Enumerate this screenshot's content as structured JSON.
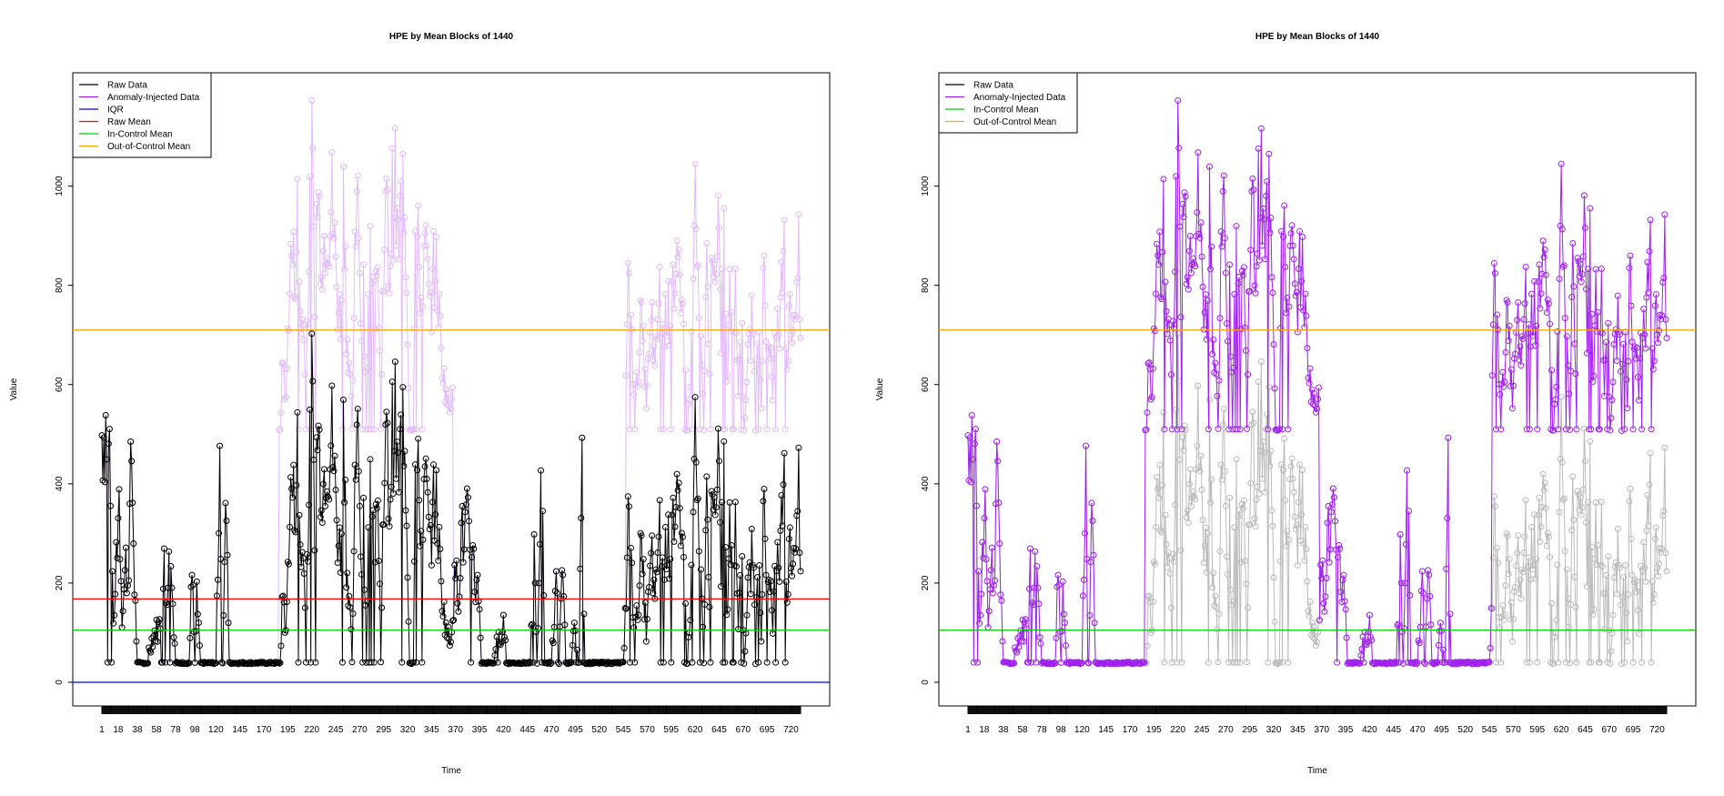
{
  "chart_data": [
    {
      "type": "line",
      "title": "HPE by Mean Blocks of 1440",
      "xlabel": "Time",
      "ylabel": "Value",
      "xlim": [
        1,
        730
      ],
      "ylim": [
        0,
        1100
      ],
      "grid": false,
      "legend_position": "top-left",
      "x_ticks": [
        1,
        18,
        38,
        58,
        78,
        98,
        120,
        145,
        170,
        195,
        220,
        245,
        270,
        295,
        320,
        345,
        370,
        395,
        420,
        445,
        470,
        495,
        520,
        545,
        570,
        595,
        620,
        645,
        670,
        695,
        720
      ],
      "y_ticks": [
        0,
        200,
        400,
        600,
        800,
        1000
      ],
      "legend": [
        {
          "name": "Raw Data",
          "color": "#000000"
        },
        {
          "name": "Anomaly-Injected Data",
          "color": "#a020f0"
        },
        {
          "name": "IQR",
          "color": "#0000ff"
        },
        {
          "name": "Raw Mean",
          "color": "#ff0000"
        },
        {
          "name": "In-Control Mean",
          "color": "#00cc00"
        },
        {
          "name": "Out-of-Control Mean",
          "color": "#ffa500"
        }
      ],
      "hlines": [
        {
          "name": "IQR",
          "value": 0,
          "color": "#0000ff"
        },
        {
          "name": "Raw Mean",
          "value": 168,
          "color": "#ff0000"
        },
        {
          "name": "In-Control Mean",
          "value": 105,
          "color": "#00cc00"
        },
        {
          "name": "Out-of-Control Mean",
          "value": 710,
          "color": "#ffa500"
        }
      ],
      "raw_style": {
        "color": "#000000",
        "opacity": 1
      },
      "anomaly_style": {
        "color": "#a020f0",
        "opacity": 0.3
      }
    },
    {
      "type": "line",
      "title": "HPE by Mean Blocks of 1440",
      "xlabel": "Time",
      "ylabel": "Value",
      "xlim": [
        1,
        730
      ],
      "ylim": [
        0,
        1100
      ],
      "grid": false,
      "legend_position": "top-left",
      "x_ticks": [
        1,
        18,
        38,
        58,
        78,
        98,
        120,
        145,
        170,
        195,
        220,
        245,
        270,
        295,
        320,
        345,
        370,
        395,
        420,
        445,
        470,
        495,
        520,
        545,
        570,
        595,
        620,
        645,
        670,
        695,
        720
      ],
      "y_ticks": [
        0,
        200,
        400,
        600,
        800,
        1000
      ],
      "legend": [
        {
          "name": "Raw Data",
          "color": "#000000"
        },
        {
          "name": "Anomaly-Injected Data",
          "color": "#a020f0"
        },
        {
          "name": "In-Control Mean",
          "color": "#00cc00"
        },
        {
          "name": "Out-of-Control Mean",
          "color": "#ffa500"
        }
      ],
      "hlines": [
        {
          "name": "In-Control Mean",
          "value": 105,
          "color": "#00cc00"
        },
        {
          "name": "Out-of-Control Mean",
          "value": 710,
          "color": "#ffa500"
        }
      ],
      "raw_style": {
        "color": "#555555",
        "opacity": 0.4
      },
      "anomaly_style": {
        "color": "#a020f0",
        "opacity": 1
      }
    }
  ],
  "series_data": {
    "name": "Raw Data",
    "anchors": [
      [
        1,
        500
      ],
      [
        5,
        515
      ],
      [
        9,
        470
      ],
      [
        11,
        220
      ],
      [
        14,
        110
      ],
      [
        16,
        260
      ],
      [
        19,
        380
      ],
      [
        22,
        140
      ],
      [
        26,
        240
      ],
      [
        28,
        200
      ],
      [
        32,
        460
      ],
      [
        35,
        200
      ],
      [
        38,
        40
      ],
      [
        42,
        40
      ],
      [
        47,
        40
      ],
      [
        52,
        80
      ],
      [
        56,
        100
      ],
      [
        60,
        110
      ],
      [
        64,
        140
      ],
      [
        66,
        230
      ],
      [
        68,
        180
      ],
      [
        70,
        220
      ],
      [
        72,
        240
      ],
      [
        74,
        200
      ],
      [
        76,
        120
      ],
      [
        78,
        40
      ],
      [
        84,
        40
      ],
      [
        88,
        40
      ],
      [
        92,
        30
      ],
      [
        95,
        225
      ],
      [
        98,
        40
      ],
      [
        100,
        170
      ],
      [
        104,
        40
      ],
      [
        110,
        40
      ],
      [
        115,
        35
      ],
      [
        120,
        30
      ],
      [
        124,
        470
      ],
      [
        127,
        40
      ],
      [
        130,
        400
      ],
      [
        134,
        40
      ],
      [
        138,
        40
      ],
      [
        143,
        40
      ],
      [
        150,
        40
      ],
      [
        160,
        40
      ],
      [
        170,
        40
      ],
      [
        178,
        40
      ],
      [
        183,
        60
      ],
      [
        187,
        40
      ],
      [
        190,
        190
      ],
      [
        193,
        90
      ],
      [
        196,
        300
      ],
      [
        199,
        400
      ],
      [
        202,
        350
      ],
      [
        205,
        470
      ],
      [
        208,
        280
      ],
      [
        211,
        240
      ],
      [
        214,
        180
      ],
      [
        217,
        370
      ],
      [
        220,
        600
      ],
      [
        223,
        350
      ],
      [
        226,
        520
      ],
      [
        229,
        440
      ],
      [
        232,
        400
      ],
      [
        235,
        470
      ],
      [
        238,
        460
      ],
      [
        241,
        500
      ],
      [
        244,
        400
      ],
      [
        247,
        300
      ],
      [
        250,
        260
      ],
      [
        253,
        600
      ],
      [
        256,
        250
      ],
      [
        259,
        180
      ],
      [
        262,
        40
      ],
      [
        265,
        400
      ],
      [
        268,
        480
      ],
      [
        271,
        260
      ],
      [
        274,
        300
      ],
      [
        277,
        40
      ],
      [
        280,
        380
      ],
      [
        283,
        440
      ],
      [
        286,
        280
      ],
      [
        289,
        460
      ],
      [
        292,
        40
      ],
      [
        295,
        420
      ],
      [
        298,
        480
      ],
      [
        301,
        350
      ],
      [
        304,
        500
      ],
      [
        307,
        520
      ],
      [
        310,
        400
      ],
      [
        313,
        480
      ],
      [
        316,
        540
      ],
      [
        319,
        360
      ],
      [
        322,
        40
      ],
      [
        325,
        40
      ],
      [
        328,
        420
      ],
      [
        331,
        400
      ],
      [
        334,
        300
      ],
      [
        337,
        380
      ],
      [
        340,
        380
      ],
      [
        343,
        260
      ],
      [
        346,
        340
      ],
      [
        349,
        380
      ],
      [
        352,
        300
      ],
      [
        355,
        200
      ],
      [
        358,
        140
      ],
      [
        361,
        100
      ],
      [
        364,
        80
      ],
      [
        367,
        140
      ],
      [
        370,
        220
      ],
      [
        373,
        180
      ],
      [
        376,
        300
      ],
      [
        379,
        280
      ],
      [
        382,
        350
      ],
      [
        385,
        220
      ],
      [
        388,
        300
      ],
      [
        391,
        180
      ],
      [
        394,
        200
      ],
      [
        397,
        40
      ],
      [
        402,
        40
      ],
      [
        406,
        40
      ],
      [
        410,
        60
      ],
      [
        414,
        80
      ],
      [
        417,
        100
      ],
      [
        420,
        120
      ],
      [
        423,
        60
      ],
      [
        426,
        40
      ],
      [
        432,
        40
      ],
      [
        440,
        40
      ],
      [
        448,
        40
      ],
      [
        452,
        250
      ],
      [
        455,
        40
      ],
      [
        460,
        520
      ],
      [
        463,
        40
      ],
      [
        470,
        40
      ],
      [
        475,
        200
      ],
      [
        478,
        40
      ],
      [
        482,
        250
      ],
      [
        485,
        40
      ],
      [
        490,
        40
      ],
      [
        495,
        120
      ],
      [
        498,
        40
      ],
      [
        502,
        400
      ],
      [
        505,
        40
      ],
      [
        512,
        40
      ],
      [
        520,
        40
      ],
      [
        528,
        40
      ],
      [
        535,
        40
      ],
      [
        540,
        40
      ],
      [
        545,
        40
      ],
      [
        548,
        180
      ],
      [
        551,
        380
      ],
      [
        554,
        200
      ],
      [
        557,
        100
      ],
      [
        560,
        140
      ],
      [
        563,
        260
      ],
      [
        566,
        200
      ],
      [
        569,
        100
      ],
      [
        572,
        180
      ],
      [
        575,
        260
      ],
      [
        578,
        140
      ],
      [
        581,
        280
      ],
      [
        584,
        320
      ],
      [
        587,
        200
      ],
      [
        590,
        300
      ],
      [
        593,
        260
      ],
      [
        596,
        400
      ],
      [
        599,
        300
      ],
      [
        602,
        360
      ],
      [
        605,
        250
      ],
      [
        608,
        320
      ],
      [
        611,
        40
      ],
      [
        614,
        100
      ],
      [
        617,
        260
      ],
      [
        620,
        520
      ],
      [
        623,
        300
      ],
      [
        626,
        200
      ],
      [
        629,
        40
      ],
      [
        632,
        360
      ],
      [
        635,
        200
      ],
      [
        638,
        440
      ],
      [
        641,
        300
      ],
      [
        644,
        420
      ],
      [
        647,
        240
      ],
      [
        650,
        460
      ],
      [
        653,
        120
      ],
      [
        656,
        300
      ],
      [
        659,
        200
      ],
      [
        662,
        360
      ],
      [
        665,
        100
      ],
      [
        668,
        300
      ],
      [
        671,
        40
      ],
      [
        674,
        160
      ],
      [
        677,
        200
      ],
      [
        680,
        300
      ],
      [
        683,
        40
      ],
      [
        686,
        360
      ],
      [
        689,
        100
      ],
      [
        692,
        400
      ],
      [
        695,
        160
      ],
      [
        698,
        240
      ],
      [
        701,
        80
      ],
      [
        704,
        340
      ],
      [
        707,
        200
      ],
      [
        710,
        400
      ],
      [
        713,
        460
      ],
      [
        716,
        160
      ],
      [
        719,
        280
      ],
      [
        722,
        240
      ],
      [
        725,
        330
      ],
      [
        728,
        380
      ],
      [
        730,
        180
      ]
    ],
    "anomaly_segments": [
      [
        186,
        367
      ],
      [
        548,
        730
      ]
    ],
    "anomaly_offset": 470
  }
}
